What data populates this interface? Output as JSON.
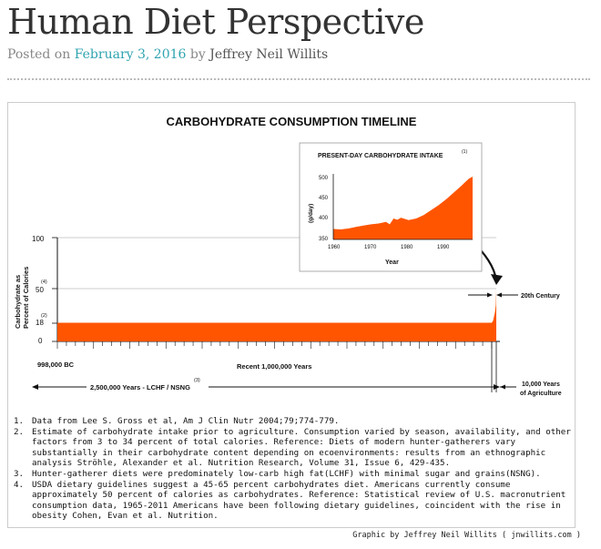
{
  "post": {
    "title": "Human Diet Perspective",
    "posted_on_label": "Posted on",
    "date": "February 3, 2016",
    "by_label": "by",
    "author": "Jeffrey Neil Willits"
  },
  "figure": {
    "title": "CARBOHYDRATE CONSUMPTION TIMELINE",
    "y_axis_label_line1": "Carbohydrate as",
    "y_axis_label_line2": "Percent of Calories",
    "y_ticks": [
      "100",
      "50",
      "18",
      "0"
    ],
    "y_tick_notes": {
      "50": "(4)",
      "18": "(2)"
    },
    "x_start_label": "998,000 BC",
    "x_axis_label": "Recent 1,000,000 Years",
    "span_label": "2,500,000 Years - LCHF / NSNG",
    "span_note": "(3)",
    "century_label": "20th Century",
    "agriculture_label_line1": "10,000 Years",
    "agriculture_label_line2": "of Agriculture",
    "inset": {
      "title": "PRESENT-DAY CARBOHYDRATE INTAKE",
      "title_note": "(1)",
      "y_label": "(g/day)",
      "x_label": "Year",
      "y_ticks": [
        "500",
        "450",
        "400",
        "350"
      ],
      "x_ticks": [
        "1960",
        "1970",
        "1980",
        "1990"
      ]
    },
    "notes": [
      {
        "num": "1.",
        "text": "Data from Lee S. Gross et al, Am J Clin Nutr 2004;79;774-779."
      },
      {
        "num": "2.",
        "text": "Estimate of carbohydrate intake prior to agriculture. Consumption varied by season, availability, and other factors from 3 to 34 percent of total calories. Reference: Diets of modern hunter-gatherers vary substantially in their carbohydrate content depending on ecoenvironments: results from an ethnographic analysis Ströhle, Alexander et al. Nutrition Research, Volume 31, Issue 6, 429-435."
      },
      {
        "num": "3.",
        "text": "Hunter-gatherer diets were predominately low-carb high fat(LCHF) with minimal sugar and grains(NSNG)."
      },
      {
        "num": "4.",
        "text": "USDA dietary guidelines suggest a 45-65 percent carbohydrates diet. Americans currently consume approximately 50 percent of calories as carbohydrates. Reference: Statistical review of U.S. macronutrient consumption data, 1965-2011 Americans have been following dietary guidelines, coincident with the rise in obesity Cohen, Evan et al. Nutrition."
      }
    ],
    "credit": "Graphic by Jeffrey Neil Willits ( jnwillits.com )"
  },
  "colors": {
    "fill": "#ff5500",
    "link": "#2ea3b0"
  },
  "chart_data": [
    {
      "type": "area",
      "title": "CARBOHYDRATE CONSUMPTION TIMELINE",
      "ylabel": "Carbohydrate as Percent of Calories",
      "xlabel": "Recent 1,000,000 Years",
      "ylim": [
        0,
        100
      ],
      "series": [
        {
          "values": [
            18,
            18,
            50
          ]
        }
      ]
    },
    {
      "type": "area",
      "title": "PRESENT-DAY CARBOHYDRATE INTAKE",
      "xlabel": "Year",
      "ylabel": "(g/day)",
      "xlim": [
        1960,
        1997
      ],
      "ylim": [
        350,
        510
      ],
      "x": [
        1960,
        1962,
        1964,
        1966,
        1968,
        1970,
        1972,
        1974,
        1975,
        1976,
        1977,
        1978,
        1980,
        1982,
        1984,
        1986,
        1988,
        1990,
        1992,
        1994,
        1996,
        1997
      ],
      "series": [
        {
          "values": [
            375,
            374,
            376,
            380,
            383,
            386,
            388,
            392,
            386,
            400,
            397,
            402,
            396,
            400,
            408,
            420,
            432,
            446,
            462,
            478,
            495,
            500
          ]
        }
      ]
    }
  ]
}
